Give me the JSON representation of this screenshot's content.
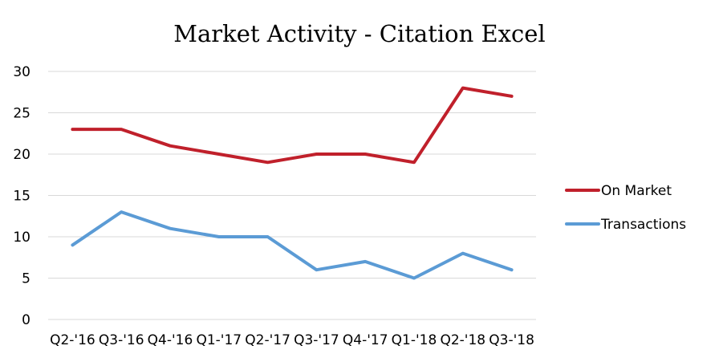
{
  "chart_data": {
    "type": "line",
    "title": "Market Activity - Citation Excel",
    "xlabel": "",
    "ylabel": "",
    "categories": [
      "Q2-'16",
      "Q3-'16",
      "Q4-'16",
      "Q1-'17",
      "Q2-'17",
      "Q3-'17",
      "Q4-'17",
      "Q1-'18",
      "Q2-'18",
      "Q3-'18"
    ],
    "ylim": [
      0,
      30
    ],
    "yticks": [
      "0",
      "5",
      "10",
      "15",
      "20",
      "25",
      "30"
    ],
    "grid": true,
    "legend_position": "right",
    "series": [
      {
        "name": "On Market",
        "color": "#c0202b",
        "values": [
          23,
          23,
          21,
          20,
          19,
          20,
          20,
          19,
          28,
          27
        ]
      },
      {
        "name": "Transactions",
        "color": "#5b9bd5",
        "values": [
          9,
          13,
          11,
          10,
          10,
          6,
          7,
          5,
          8,
          6
        ]
      }
    ]
  }
}
